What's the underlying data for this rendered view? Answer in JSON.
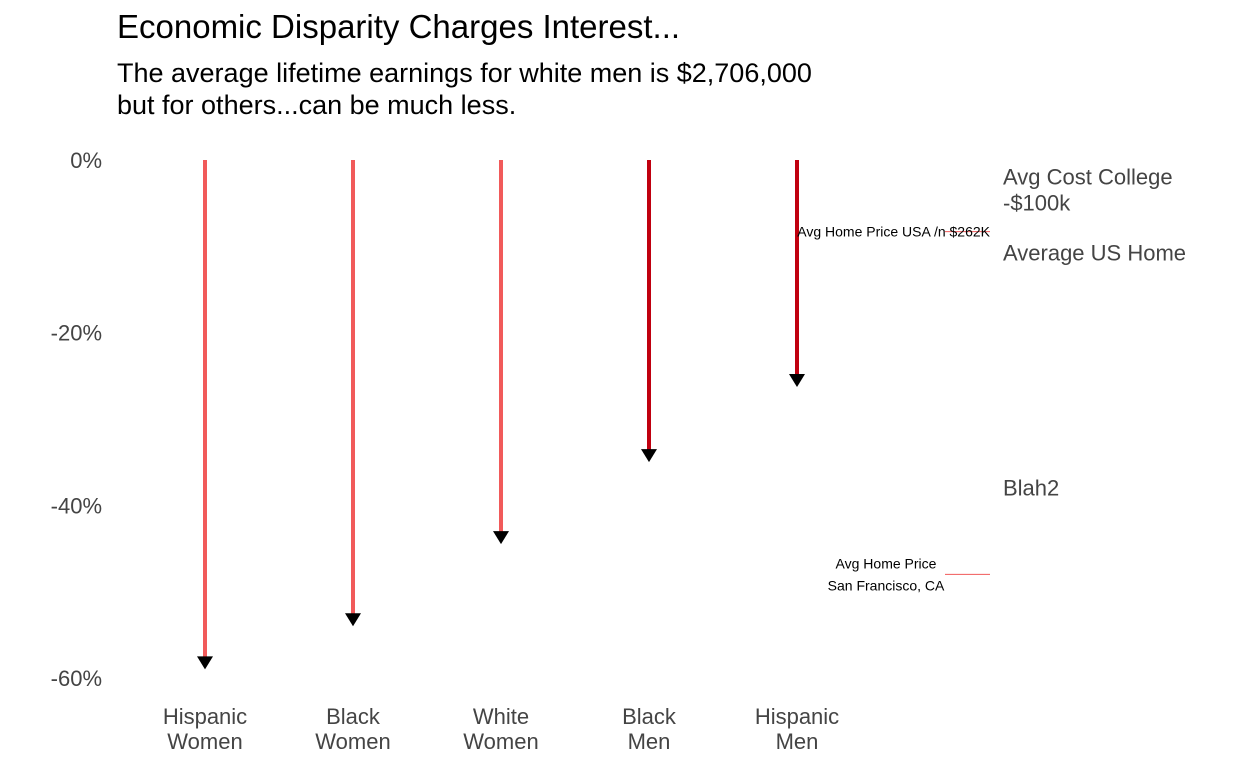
{
  "chart_data": {
    "type": "arrow",
    "title": "Economic Disparity Charges Interest...",
    "subtitle": [
      "The average lifetime earnings for white men is $2,706,000",
      "but for others...can be much less."
    ],
    "xlabel": "",
    "ylabel": "",
    "ylim": [
      -60,
      0
    ],
    "y_ticks": [
      0,
      -20,
      -40,
      -60
    ],
    "y_tick_labels": [
      "0%",
      "-20%",
      "-40%",
      "-60%"
    ],
    "grid": false,
    "legend": "none",
    "categories": [
      {
        "lines": [
          "Hispanic",
          "Women"
        ],
        "end": -59,
        "color": "#f15a5a"
      },
      {
        "lines": [
          "Black",
          "Women"
        ],
        "end": -54,
        "color": "#f15a5a"
      },
      {
        "lines": [
          "White",
          "Women"
        ],
        "end": -44.5,
        "color": "#f15a5a"
      },
      {
        "lines": [
          "Black",
          "Men"
        ],
        "end": -35,
        "color": "#c0000f"
      },
      {
        "lines": [
          "Hispanic",
          "Men"
        ],
        "end": -26.3,
        "color": "#c0000f"
      }
    ],
    "right_labels": [
      {
        "lines": [
          "Avg Cost College",
          "-$100k"
        ],
        "y": -1
      },
      {
        "lines": [
          "Average US Home"
        ],
        "y": -9.8
      },
      {
        "lines": [
          "Blah2"
        ],
        "y": -37
      }
    ],
    "annotations": [
      {
        "lines": [
          "Avg Home Price USA /n $262K"
        ],
        "y": -8.3,
        "line_color": "#f15a5a"
      },
      {
        "lines": [
          "Avg Home Price",
          "San Francisco, CA"
        ],
        "y": -48,
        "line_color": "#f15a5a"
      }
    ]
  }
}
